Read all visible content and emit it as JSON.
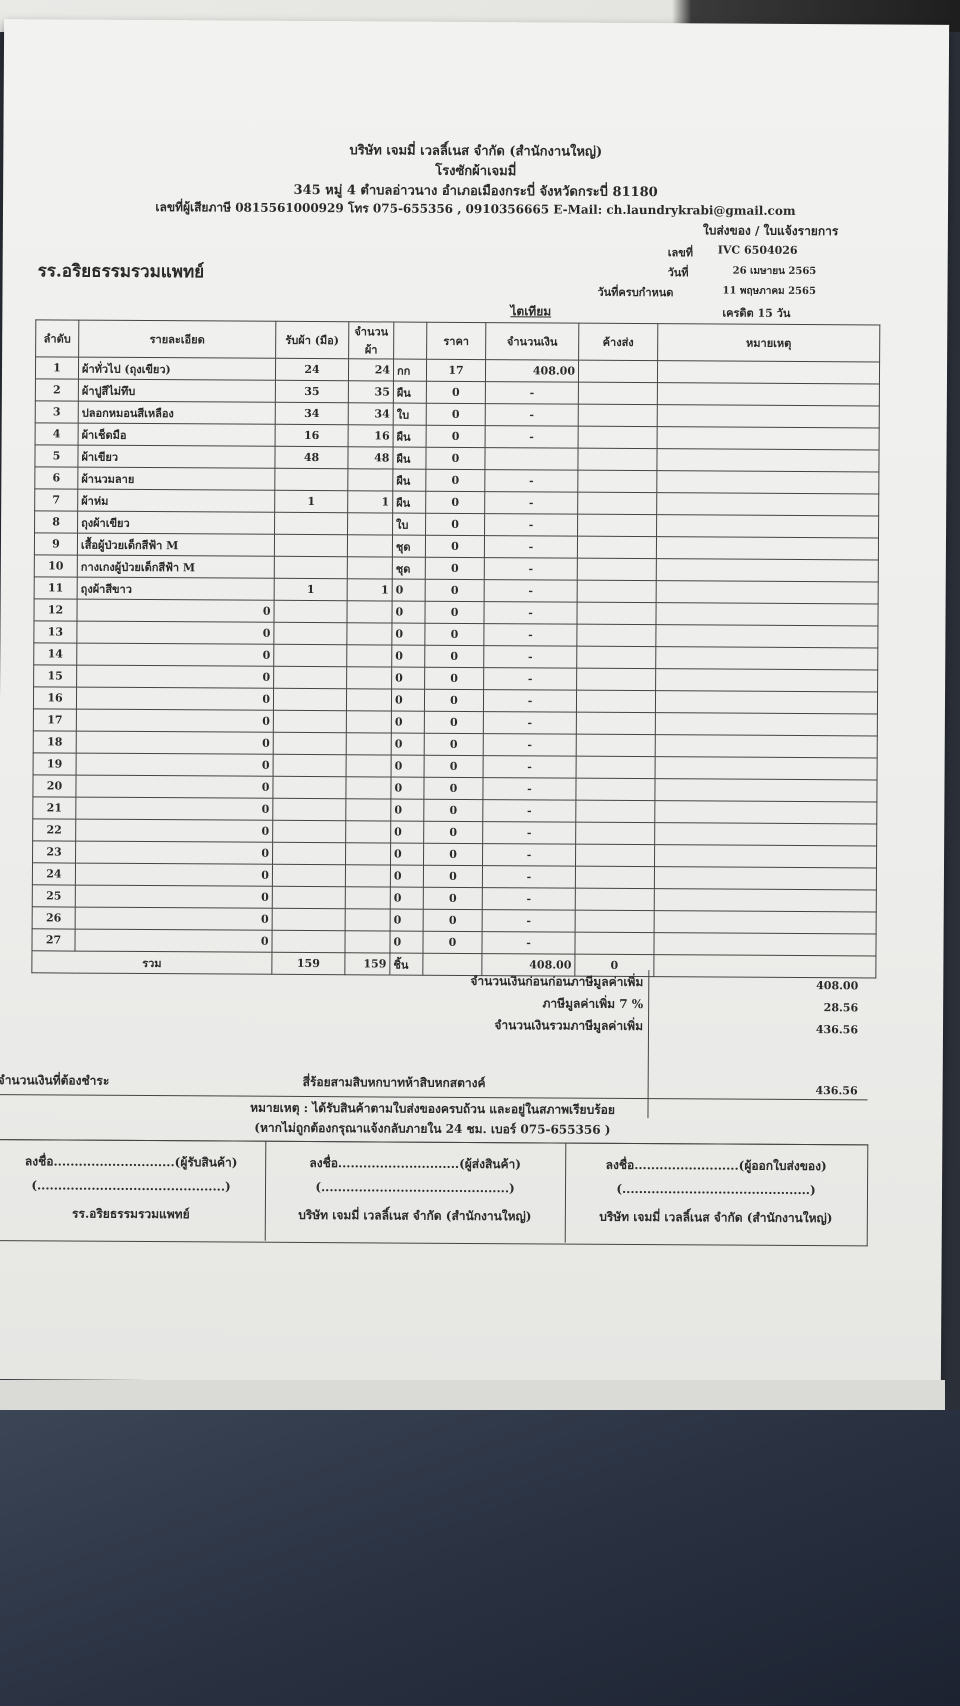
{
  "company": {
    "name": "บริษัท เจมมี่ เวลลิ์เนส จำกัด (สำนักงานใหญ่)",
    "subtitle": "โรงซักผ้าเจมมี่",
    "address": "345 หมู่ 4 ตำบลอ่าวนาง อำเภอเมืองกระบี่ จังหวัดกระบี่ 81180",
    "contact": "เลขที่ผู้เสียภาษี 0815561000929 โทร 075-655356 , 0910356665 E-Mail: ch.laundrykrabi@gmail.com"
  },
  "doc": {
    "type": "ใบส่งของ / ใบแจ้งรายการ",
    "no_label": "เลขที่",
    "no": "IVC 6504026",
    "date_label": "วันที่",
    "date": "26 เมษายน 2565",
    "due_label": "วันที่ครบกำหนด",
    "due": "11 พฤษภาคม 2565",
    "credit": "เครดิต 15 วัน",
    "department": "ไตเทียม",
    "customer": "รร.อริยธรรมรวมแพทย์"
  },
  "table": {
    "headers": [
      "ลำดับ",
      "รายละเอียด",
      "รับผ้า (มือ)",
      "จำนวนผ้า",
      "",
      "ราคา",
      "จำนวนเงิน",
      "ค้างส่ง",
      "หมายเหตุ"
    ],
    "rows": [
      [
        "1",
        "ผ้าทั่วไป (ถุงเขียว)",
        "24",
        "24",
        "กก",
        "17",
        "408.00"
      ],
      [
        "2",
        "ผ้าปูสีไม่ทึบ",
        "35",
        "35",
        "ผืน",
        "0",
        "-"
      ],
      [
        "3",
        "ปลอกหมอนสีเหลือง",
        "34",
        "34",
        "ใบ",
        "0",
        "-"
      ],
      [
        "4",
        "ผ้าเช็ดมือ",
        "16",
        "16",
        "ผืน",
        "0",
        "-"
      ],
      [
        "5",
        "ผ้าเขียว",
        "48",
        "48",
        "ผืน",
        "0",
        ""
      ],
      [
        "6",
        "ผ้านวมลาย",
        "",
        "",
        "ผืน",
        "0",
        "-"
      ],
      [
        "7",
        "ผ้าห่ม",
        "1",
        "1",
        "ผืน",
        "0",
        "-"
      ],
      [
        "8",
        "ถุงผ้าเขียว",
        "",
        "",
        "ใบ",
        "0",
        "-"
      ],
      [
        "9",
        "เสื้อผู้ป่วยเด็กสีฟ้า M",
        "",
        "",
        "ชุด",
        "0",
        "-"
      ],
      [
        "10",
        "กางเกงผู้ป่วยเด็กสีฟ้า M",
        "",
        "",
        "ชุด",
        "0",
        "-"
      ],
      [
        "11",
        "ถุงผ้าสีขาว",
        "1",
        "1",
        "0",
        "0",
        "-"
      ],
      [
        "12",
        "0",
        "",
        "",
        "0",
        "0",
        "-"
      ],
      [
        "13",
        "0",
        "",
        "",
        "0",
        "0",
        "-"
      ],
      [
        "14",
        "0",
        "",
        "",
        "0",
        "0",
        "-"
      ],
      [
        "15",
        "0",
        "",
        "",
        "0",
        "0",
        "-"
      ],
      [
        "16",
        "0",
        "",
        "",
        "0",
        "0",
        "-"
      ],
      [
        "17",
        "0",
        "",
        "",
        "0",
        "0",
        "-"
      ],
      [
        "18",
        "0",
        "",
        "",
        "0",
        "0",
        "-"
      ],
      [
        "19",
        "0",
        "",
        "",
        "0",
        "0",
        "-"
      ],
      [
        "20",
        "0",
        "",
        "",
        "0",
        "0",
        "-"
      ],
      [
        "21",
        "0",
        "",
        "",
        "0",
        "0",
        "-"
      ],
      [
        "22",
        "0",
        "",
        "",
        "0",
        "0",
        "-"
      ],
      [
        "23",
        "0",
        "",
        "",
        "0",
        "0",
        "-"
      ],
      [
        "24",
        "0",
        "",
        "",
        "0",
        "0",
        "-"
      ],
      [
        "25",
        "0",
        "",
        "",
        "0",
        "0",
        "-"
      ],
      [
        "26",
        "0",
        "",
        "",
        "0",
        "0",
        "-"
      ],
      [
        "27",
        "0",
        "",
        "",
        "0",
        "0",
        "-"
      ]
    ],
    "total": {
      "label": "รวม",
      "received": "159",
      "qty": "159",
      "unit": "ชิ้น",
      "amount": "408.00",
      "outstanding": "0"
    }
  },
  "summary": {
    "subtotal_label": "จำนวนเงินก่อนก่อนภาษีมูลค่าเพิ่ม",
    "subtotal": "408.00",
    "vat_label": "ภาษีมูลค่าเพิ่ม 7 %",
    "vat": "28.56",
    "grand_label": "จำนวนเงินรวมภาษีมูลค่าเพิ่ม",
    "grand": "436.56",
    "payable_label": "จำนวนเงินที่ต้องชำระ",
    "payable_words": "สี่ร้อยสามสิบหกบาทห้าสิบหกสตางค์",
    "payable": "436.56"
  },
  "note": {
    "line1": "หมายเหตุ : ได้รับสินค้าตามใบส่งของครบถ้วน และอยู่ในสภาพเรียบร้อย",
    "line2": "(หากไม่ถูกต้องกรุณาแจ้งกลับภายใน 24 ชม. เบอร์ 075-655356 )"
  },
  "signatures": [
    {
      "line": "ลงชื่อ.............................(ผู้รับสินค้า)",
      "paren": "(.............................................)",
      "org": "รร.อริยธรรมรวมแพทย์"
    },
    {
      "line": "ลงชื่อ.............................(ผู้ส่งสินค้า)",
      "paren": "(.............................................)",
      "org": "บริษัท เจมมี่ เวลลิ์เนส จำกัด (สำนักงานใหญ่)"
    },
    {
      "line": "ลงชื่อ.........................(ผู้ออกใบส่งของ)",
      "paren": "(.............................................)",
      "org": "บริษัท เจมมี่ เวลลิ์เนส จำกัด (สำนักงานใหญ่)"
    }
  ]
}
